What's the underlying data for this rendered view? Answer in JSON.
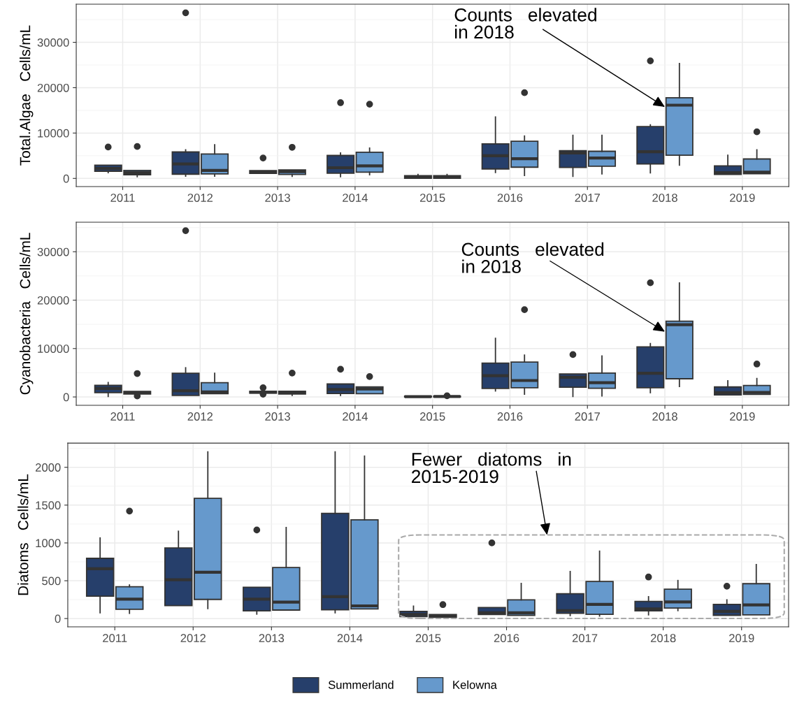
{
  "chart_data": [
    {
      "type": "box",
      "ylabel": "Total.Algae   Cells/mL",
      "categories": [
        "2011",
        "2012",
        "2013",
        "2014",
        "2015",
        "2016",
        "2017",
        "2018",
        "2019"
      ],
      "ylim": [
        -1800,
        38400
      ],
      "yticks": [
        0,
        10000,
        20000,
        30000
      ],
      "grid": true,
      "legend": "bottom",
      "annotations": [
        {
          "text": "Counts   elevated\nin 2018",
          "x": "2018",
          "y": 15750
        }
      ],
      "series": [
        {
          "name": "Summerland",
          "color": "#263f6b",
          "boxes": [
            {
              "low": 1260,
              "q1": 1590,
              "median": 2200,
              "q3": 2910,
              "high": 2910,
              "outliers": [
                6920
              ]
            },
            {
              "low": 490,
              "q1": 930,
              "median": 3180,
              "q3": 5820,
              "high": 6310,
              "outliers": [
                36500
              ]
            },
            {
              "low": 1100,
              "q1": 1100,
              "median": 1370,
              "q3": 1700,
              "high": 1700,
              "outliers": [
                4500
              ]
            },
            {
              "low": 380,
              "q1": 1150,
              "median": 2360,
              "q3": 5050,
              "high": 5600,
              "outliers": [
                16690
              ]
            },
            {
              "low": 50,
              "q1": 50,
              "median": 330,
              "q3": 600,
              "high": 880
            },
            {
              "low": 1320,
              "q1": 2090,
              "median": 5000,
              "q3": 7630,
              "high": 13560
            },
            {
              "low": 440,
              "q1": 2420,
              "median": 5600,
              "q3": 6090,
              "high": 9500
            },
            {
              "low": 1210,
              "q1": 3180,
              "median": 5870,
              "q3": 11420,
              "high": 11800,
              "outliers": [
                25910
              ]
            },
            {
              "low": 880,
              "q1": 880,
              "median": 1260,
              "q3": 2750,
              "high": 5100
            }
          ]
        },
        {
          "name": "Kelowna",
          "color": "#6699cc",
          "boxes": [
            {
              "low": 380,
              "q1": 820,
              "median": 1260,
              "q3": 1760,
              "high": 1760,
              "outliers": [
                7030
              ]
            },
            {
              "low": 490,
              "q1": 990,
              "median": 1760,
              "q3": 5380,
              "high": 7410
            },
            {
              "low": 440,
              "q1": 880,
              "median": 1480,
              "q3": 1870,
              "high": 1870,
              "outliers": [
                6860
              ]
            },
            {
              "low": 820,
              "q1": 1370,
              "median": 2750,
              "q3": 5760,
              "high": 6700,
              "outliers": [
                16360
              ]
            },
            {
              "low": 50,
              "q1": 50,
              "median": 330,
              "q3": 600,
              "high": 880
            },
            {
              "low": 660,
              "q1": 2470,
              "median": 4340,
              "q3": 8180,
              "high": 9330,
              "outliers": [
                18890
              ]
            },
            {
              "low": 990,
              "q1": 2690,
              "median": 4500,
              "q3": 5980,
              "high": 9500
            },
            {
              "low": 2910,
              "q1": 5100,
              "median": 16140,
              "q3": 17790,
              "high": 25310
            },
            {
              "low": 1040,
              "q1": 1040,
              "median": 1370,
              "q3": 4280,
              "high": 6310,
              "outliers": [
                10270
              ]
            }
          ]
        }
      ]
    },
    {
      "type": "box",
      "ylabel": "Cyanobacteria   Cells/mL",
      "categories": [
        "2011",
        "2012",
        "2013",
        "2014",
        "2015",
        "2016",
        "2017",
        "2018",
        "2019"
      ],
      "ylim": [
        -1720,
        36100
      ],
      "yticks": [
        0,
        10000,
        20000,
        30000
      ],
      "grid": true,
      "annotations": [
        {
          "text": "Counts   elevated\nin 2018",
          "x": "2018",
          "y": 13490
        }
      ],
      "series": [
        {
          "color": "#263f6b",
          "boxes": [
            {
              "low": 100,
              "q1": 880,
              "median": 1750,
              "q3": 2420,
              "high": 2990
            },
            {
              "low": 310,
              "q1": 310,
              "median": 1290,
              "q3": 4890,
              "high": 6030,
              "outliers": [
                34350
              ]
            },
            {
              "low": 770,
              "q1": 770,
              "median": 980,
              "q3": 1180,
              "high": 1180,
              "outliers": [
                1910,
                570
              ]
            },
            {
              "low": 310,
              "q1": 720,
              "median": 1550,
              "q3": 2680,
              "high": 2680,
              "outliers": [
                5720
              ]
            },
            {
              "low": 0,
              "q1": 0,
              "median": 60,
              "q3": 150,
              "high": 150
            },
            {
              "low": 1240,
              "q1": 1750,
              "median": 4380,
              "q3": 7000,
              "high": 12100
            },
            {
              "low": 100,
              "q1": 2010,
              "median": 4070,
              "q3": 4740,
              "high": 4740,
              "outliers": [
                8760
              ]
            },
            {
              "low": 880,
              "q1": 1910,
              "median": 4890,
              "q3": 10350,
              "high": 11020,
              "outliers": [
                23590
              ]
            },
            {
              "low": 410,
              "q1": 410,
              "median": 880,
              "q3": 2060,
              "high": 3350
            }
          ]
        },
        {
          "color": "#6699cc",
          "boxes": [
            {
              "low": 620,
              "q1": 620,
              "median": 880,
              "q3": 1130,
              "high": 1130,
              "outliers": [
                4840,
                200
              ]
            },
            {
              "low": 670,
              "q1": 670,
              "median": 1030,
              "q3": 2940,
              "high": 4890
            },
            {
              "low": 310,
              "q1": 620,
              "median": 880,
              "q3": 1180,
              "high": 1180,
              "outliers": [
                4940
              ]
            },
            {
              "low": 670,
              "q1": 670,
              "median": 1650,
              "q3": 2060,
              "high": 2060,
              "outliers": [
                4220
              ]
            },
            {
              "low": 0,
              "q1": 0,
              "median": 100,
              "q3": 150,
              "high": 150,
              "outliers": [
                250
              ]
            },
            {
              "low": 570,
              "q1": 1910,
              "median": 3400,
              "q3": 7210,
              "high": 8650,
              "outliers": [
                18030
              ]
            },
            {
              "low": 200,
              "q1": 1800,
              "median": 2940,
              "q3": 4940,
              "high": 8450
            },
            {
              "low": 2160,
              "q1": 3760,
              "median": 14940,
              "q3": 15660,
              "high": 23540
            },
            {
              "low": 520,
              "q1": 520,
              "median": 930,
              "q3": 2370,
              "high": 3810,
              "outliers": [
                6800
              ]
            }
          ]
        }
      ]
    },
    {
      "type": "box",
      "ylabel": "Diatoms   Cells/mL",
      "categories": [
        "2011",
        "2012",
        "2013",
        "2014",
        "2015",
        "2016",
        "2017",
        "2018",
        "2019"
      ],
      "ylim": [
        -110,
        2320
      ],
      "yticks": [
        0,
        500,
        1000,
        1500,
        2000
      ],
      "grid": true,
      "annotations": [
        "Fewer   diatoms   in\n2015-2019"
      ],
      "series": [
        {
          "color": "#263f6b",
          "boxes": [
            {
              "low": 76,
              "q1": 296,
              "median": 658,
              "q3": 796,
              "high": 1066
            },
            {
              "low": 171,
              "q1": 171,
              "median": 513,
              "q3": 934,
              "high": 1154
            },
            {
              "low": 59,
              "q1": 102,
              "median": 257,
              "q3": 414,
              "high": 414,
              "outliers": [
                1171
              ]
            },
            {
              "low": 76,
              "q1": 115,
              "median": 289,
              "q3": 1391,
              "high": 2204
            },
            {
              "low": 26,
              "q1": 26,
              "median": 53,
              "q3": 95,
              "high": 164
            },
            {
              "low": 53,
              "q1": 53,
              "median": 76,
              "q3": 145,
              "high": 145,
              "outliers": [
                1000
              ]
            },
            {
              "low": 39,
              "q1": 69,
              "median": 105,
              "q3": 329,
              "high": 622
            },
            {
              "low": 49,
              "q1": 102,
              "median": 128,
              "q3": 227,
              "high": 289,
              "outliers": [
                549
              ]
            },
            {
              "low": 43,
              "q1": 43,
              "median": 95,
              "q3": 187,
              "high": 247,
              "outliers": [
                428
              ]
            }
          ]
        },
        {
          "color": "#6699cc",
          "boxes": [
            {
              "low": 69,
              "q1": 122,
              "median": 257,
              "q3": 421,
              "high": 444,
              "outliers": [
                1421
              ]
            },
            {
              "low": 132,
              "q1": 253,
              "median": 612,
              "q3": 1589,
              "high": 2204
            },
            {
              "low": 112,
              "q1": 112,
              "median": 217,
              "q3": 674,
              "high": 1204
            },
            {
              "low": 128,
              "q1": 128,
              "median": 168,
              "q3": 1306,
              "high": 2148
            },
            {
              "low": 16,
              "q1": 16,
              "median": 33,
              "q3": 53,
              "high": 53,
              "outliers": [
                184
              ]
            },
            {
              "low": 43,
              "q1": 43,
              "median": 76,
              "q3": 247,
              "high": 464
            },
            {
              "low": 33,
              "q1": 56,
              "median": 187,
              "q3": 490,
              "high": 891
            },
            {
              "low": 105,
              "q1": 138,
              "median": 220,
              "q3": 388,
              "high": 503
            },
            {
              "low": 49,
              "q1": 49,
              "median": 181,
              "q3": 461,
              "high": 714
            }
          ]
        }
      ]
    }
  ]
}
